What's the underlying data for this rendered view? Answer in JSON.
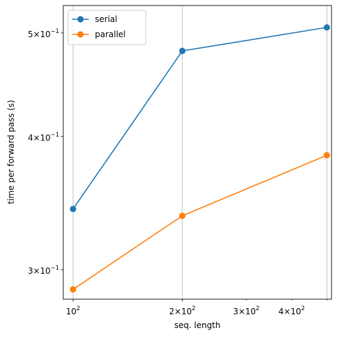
{
  "chart_data": {
    "type": "line",
    "xlabel": "seq. length",
    "ylabel": "time per forward pass (s)",
    "xscale": "log",
    "yscale": "log",
    "xlim": [
      94,
      515
    ],
    "ylim": [
      0.2815,
      0.5305
    ],
    "grid": "x",
    "legend": "top-left",
    "x": [
      100,
      200,
      500
    ],
    "series": [
      {
        "name": "serial",
        "color": "#1f77b4",
        "values": [
          0.342,
          0.481,
          0.506
        ]
      },
      {
        "name": "parallel",
        "color": "#ff7f0e",
        "values": [
          0.2875,
          0.337,
          0.384
        ]
      }
    ],
    "x_major_ticks": [
      {
        "value": 100,
        "base": "10",
        "exp": "2"
      },
      {
        "value": 200,
        "coef": "2",
        "base": "10",
        "exp": "2"
      }
    ],
    "x_minor_tick_labels": [
      {
        "value": 300,
        "coef": "3",
        "base": "10",
        "exp": "2"
      },
      {
        "value": 400,
        "coef": "4",
        "base": "10",
        "exp": "2"
      }
    ],
    "x_gridlines": [
      100,
      200,
      500
    ],
    "y_ticks": [
      {
        "value": 0.3,
        "coef": "3",
        "base": "10",
        "exp": "−1"
      },
      {
        "value": 0.4,
        "coef": "4",
        "base": "10",
        "exp": "−1"
      },
      {
        "value": 0.5,
        "coef": "5",
        "base": "10",
        "exp": "−1"
      }
    ]
  }
}
